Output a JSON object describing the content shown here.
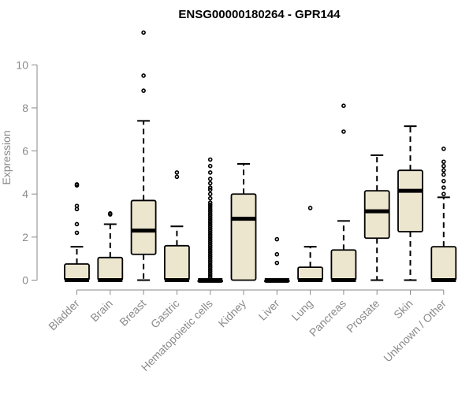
{
  "chart_data": {
    "type": "boxplot",
    "title": "ENSG00000180264 - GPR144",
    "ylabel": "Expression",
    "xlabel": "",
    "ylim": [
      0,
      11.6
    ],
    "yticks": [
      0,
      2,
      4,
      6,
      8,
      10
    ],
    "box_fill": "#ede6cf",
    "box_stroke": "#000000",
    "axis_color": "#8a8a8a",
    "categories": [
      "Bladder",
      "Brain",
      "Breast",
      "Gastric",
      "Hematopoietic cells",
      "Kidney",
      "Liver",
      "Lung",
      "Pancreas",
      "Prostate",
      "Skin",
      "Unknown / Other"
    ],
    "boxes": [
      {
        "q1": 0,
        "median": 0,
        "q3": 0.75,
        "lower": 0,
        "upper": 1.55,
        "outliers": [
          2.2,
          2.6,
          3.3,
          3.45,
          4.4,
          4.45
        ]
      },
      {
        "q1": 0,
        "median": 0,
        "q3": 1.05,
        "lower": 0,
        "upper": 2.6,
        "outliers": [
          3.05,
          3.1
        ]
      },
      {
        "q1": 1.2,
        "median": 2.3,
        "q3": 3.7,
        "lower": 0,
        "upper": 7.4,
        "outliers": [
          8.8,
          9.5,
          11.5
        ]
      },
      {
        "q1": 0,
        "median": 0,
        "q3": 1.6,
        "lower": 0,
        "upper": 2.5,
        "outliers": [
          4.8,
          5.0
        ]
      },
      {
        "q1": 0,
        "median": 0,
        "q3": 0,
        "lower": 0,
        "upper": 0,
        "outliers": [
          0.1,
          0.2,
          0.3,
          0.4,
          0.5,
          0.6,
          0.7,
          0.8,
          0.9,
          1.0,
          1.1,
          1.2,
          1.3,
          1.4,
          1.5,
          1.6,
          1.7,
          1.8,
          1.9,
          2.0,
          2.1,
          2.2,
          2.3,
          2.4,
          2.5,
          2.6,
          2.7,
          2.8,
          2.9,
          3.0,
          3.1,
          3.2,
          3.3,
          3.4,
          3.5,
          3.6,
          3.8,
          4.0,
          4.2,
          4.3,
          4.5,
          4.7,
          5.0,
          5.3,
          5.6
        ]
      },
      {
        "q1": 0,
        "median": 2.85,
        "q3": 4.0,
        "lower": 0,
        "upper": 5.4,
        "outliers": []
      },
      {
        "q1": 0,
        "median": 0,
        "q3": 0,
        "lower": 0,
        "upper": 0,
        "outliers": [
          0.8,
          1.2,
          1.9
        ]
      },
      {
        "q1": 0,
        "median": 0,
        "q3": 0.6,
        "lower": 0,
        "upper": 1.55,
        "outliers": [
          3.35
        ]
      },
      {
        "q1": 0,
        "median": 0,
        "q3": 1.4,
        "lower": 0,
        "upper": 2.75,
        "outliers": [
          6.9,
          8.1
        ]
      },
      {
        "q1": 1.95,
        "median": 3.2,
        "q3": 4.15,
        "lower": 0,
        "upper": 5.8,
        "outliers": []
      },
      {
        "q1": 2.25,
        "median": 4.15,
        "q3": 5.1,
        "lower": 0,
        "upper": 7.15,
        "outliers": []
      },
      {
        "q1": 0,
        "median": 0,
        "q3": 1.55,
        "lower": 0,
        "upper": 3.85,
        "outliers": [
          4.0,
          4.3,
          4.6,
          4.9,
          5.1,
          5.3,
          5.5,
          6.1
        ]
      }
    ]
  }
}
